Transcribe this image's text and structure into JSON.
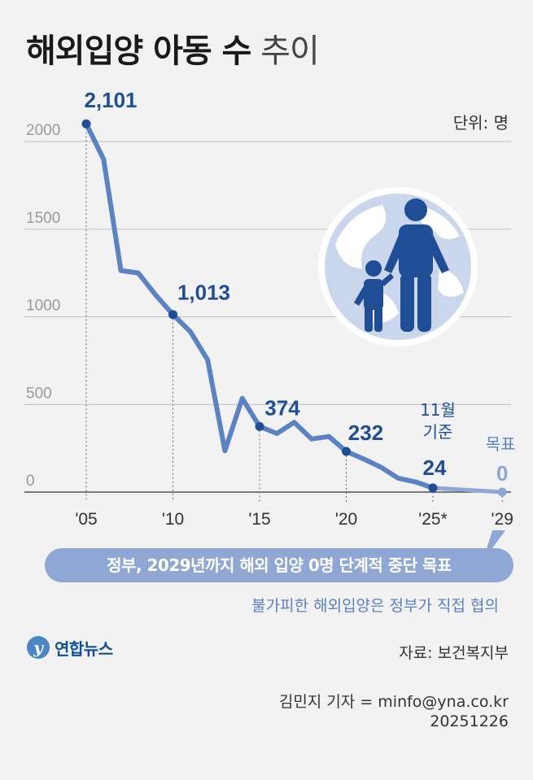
{
  "title": {
    "bold": "해외입양 아동 수",
    "light": "추이"
  },
  "unit_label": "단위: 명",
  "chart_data": {
    "type": "line",
    "title": "해외입양 아동 수 추이",
    "unit": "단위: 명",
    "x": [
      2005,
      2006,
      2007,
      2008,
      2009,
      2010,
      2011,
      2012,
      2013,
      2014,
      2015,
      2016,
      2017,
      2018,
      2019,
      2020,
      2021,
      2022,
      2023,
      2024,
      2025,
      2029
    ],
    "values": [
      2101,
      1899,
      1264,
      1250,
      1125,
      1013,
      916,
      755,
      236,
      535,
      374,
      334,
      398,
      303,
      317,
      232,
      189,
      142,
      79,
      58,
      24,
      0
    ],
    "ylim": [
      0,
      2200
    ],
    "yticks": [
      0,
      500,
      1000,
      1500,
      2000
    ],
    "ytick_labels": [
      "0",
      "500",
      "1000",
      "1500",
      "2000"
    ],
    "xticks": [
      2005,
      2010,
      2015,
      2020,
      2025,
      2029
    ],
    "xtick_labels": [
      "'05",
      "'10",
      "'15",
      "'20",
      "'25*",
      "'29"
    ],
    "grid": true,
    "color": "#5b82c5",
    "label_color": "#1f4e96",
    "target_color": "#8ea7d5",
    "data_labels": [
      {
        "x": 2005,
        "text": "2,101"
      },
      {
        "x": 2010,
        "text": "1,013"
      },
      {
        "x": 2015,
        "text": "374"
      },
      {
        "x": 2020,
        "text": "232"
      },
      {
        "x": 2025,
        "text": "24"
      },
      {
        "x": 2029,
        "text": "0"
      }
    ],
    "annotations": [
      {
        "x": 2025,
        "lines": [
          "11월",
          "기준"
        ]
      },
      {
        "x": 2029,
        "lines": [
          "목표"
        ]
      }
    ]
  },
  "headline": "정부, 2029년까지 해외 입양 0명 단계적 중단 목표",
  "subline": "불가피한 해외입양은 정부가 직접 협의",
  "logo_text": "연합뉴스",
  "source": "자료: 보건복지부",
  "reporter": "김민지 기자 = minfo@yna.co.kr",
  "date": "20251226",
  "colors": {
    "background": "#f2f2f2",
    "illustration": "#1f4e96",
    "globe": "#c9d6ec"
  }
}
